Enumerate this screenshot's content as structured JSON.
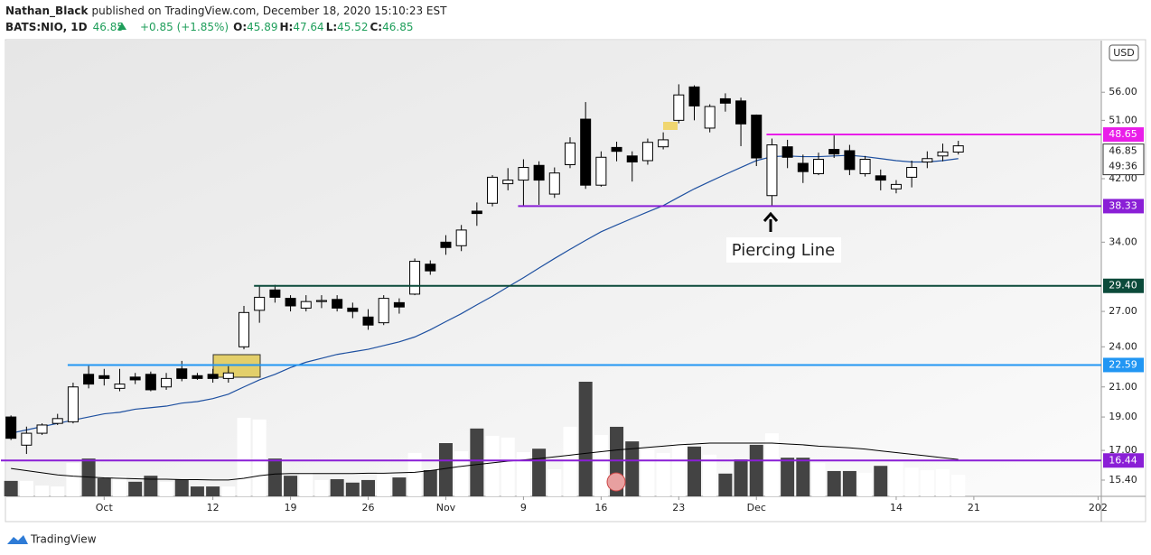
{
  "header": {
    "author": "Nathan_Black",
    "published": "published on TradingView.com, December 18, 2020 15:10:23 EST",
    "symbol": "BATS:NIO, 1D",
    "last": "46.85",
    "change": "+0.85 (+1.85%)",
    "ohlc": [
      {
        "label": "O:",
        "value": "45.89"
      },
      {
        "label": "H:",
        "value": "47.64"
      },
      {
        "label": "L:",
        "value": "45.52"
      },
      {
        "label": "C:",
        "value": "46.85"
      }
    ]
  },
  "footer": "TradingView",
  "chart_data": {
    "type": "candlestick",
    "log": true,
    "grid": false,
    "currency": "USD",
    "countdown": "49:36",
    "annotation": "Piercing Line",
    "xlim": [
      -0.3,
      70.15
    ],
    "ylim": [
      14.59,
      66.5
    ],
    "xticks": [
      {
        "value": 6,
        "label": "Oct"
      },
      {
        "value": 13,
        "label": "12"
      },
      {
        "value": 18,
        "label": "19"
      },
      {
        "value": 23,
        "label": "26"
      },
      {
        "value": 28,
        "label": "Nov"
      },
      {
        "value": 33,
        "label": "9"
      },
      {
        "value": 38,
        "label": "16"
      },
      {
        "value": 43,
        "label": "23"
      },
      {
        "value": 48,
        "label": "Dec"
      },
      {
        "value": 57,
        "label": "14"
      },
      {
        "value": 62,
        "label": "21"
      },
      {
        "value": 70,
        "label": "202"
      }
    ],
    "yticks": [
      {
        "value": 56,
        "label": "56.00"
      },
      {
        "value": 51,
        "label": "51.00"
      },
      {
        "value": 42,
        "label": "42.00"
      },
      {
        "value": 34,
        "label": "34.00"
      },
      {
        "value": 27,
        "label": "27.00"
      },
      {
        "value": 24,
        "label": "24.00"
      },
      {
        "value": 21,
        "label": "21.00"
      },
      {
        "value": 19,
        "label": "19.00"
      },
      {
        "value": 17,
        "label": "17.00"
      },
      {
        "value": 15.4,
        "label": "15.40"
      }
    ],
    "levels": [
      {
        "value": 48.65,
        "label": "48.65",
        "color": "#e91ee9",
        "from": 49
      },
      {
        "value": 38.33,
        "label": "38.33",
        "color": "#8a1fd6",
        "from": 33
      },
      {
        "value": 29.4,
        "label": "29.40",
        "color": "#0b4a3a",
        "from": 16
      },
      {
        "value": 22.59,
        "label": "22.59",
        "color": "#2196f3",
        "from": 4
      },
      {
        "value": 16.44,
        "label": "16.44",
        "color": "#8a1fd6",
        "from": -0.3
      }
    ],
    "up_color": "#ffffff",
    "down_color": "#000000",
    "volume_up_color": "#ffffff",
    "volume_down_color": "#434343",
    "ma_color": "#1e50a0",
    "volume_ma_color": "#000000",
    "open": [
      19.0,
      17.3,
      18.0,
      18.6,
      18.7,
      21.9,
      21.8,
      20.9,
      21.7,
      21.9,
      21.0,
      22.3,
      21.8,
      21.9,
      21.6,
      24.0,
      27.1,
      29.0,
      28.2,
      27.3,
      27.9,
      28.1,
      27.3,
      26.5,
      26.0,
      27.8,
      28.6,
      31.6,
      34.0,
      33.6,
      37.7,
      38.7,
      41.3,
      41.8,
      43.9,
      39.9,
      44.0,
      51.2,
      41.1,
      46.6,
      45.3,
      44.6,
      46.7,
      51.0,
      57.0,
      49.7,
      54.8,
      54.4,
      51.9,
      39.7,
      46.7,
      44.2,
      42.7,
      46.3,
      46.1,
      42.7,
      42.4,
      40.6,
      42.2,
      44.4,
      45.3,
      45.89
    ],
    "high": [
      19.1,
      18.4,
      18.6,
      19.2,
      21.3,
      22.6,
      22.3,
      22.3,
      22.0,
      22.1,
      22.0,
      22.9,
      22.0,
      22.3,
      22.5,
      27.5,
      29.4,
      29.5,
      28.5,
      28.5,
      28.5,
      28.5,
      27.8,
      27.2,
      28.5,
      28.2,
      32.2,
      32.0,
      34.8,
      36.0,
      38.8,
      42.5,
      43.5,
      44.8,
      44.5,
      43.6,
      48.2,
      54.2,
      46.0,
      47.5,
      46.0,
      48.0,
      49.0,
      57.5,
      57.3,
      53.8,
      55.8,
      55.0,
      52.0,
      48.0,
      47.8,
      45.5,
      45.8,
      48.5,
      47.0,
      45.3,
      43.3,
      41.8,
      44.6,
      46.0,
      47.2,
      47.64
    ],
    "low": [
      17.6,
      16.8,
      17.9,
      18.5,
      18.6,
      20.9,
      21.1,
      20.7,
      21.2,
      20.7,
      20.8,
      21.4,
      21.5,
      21.3,
      21.3,
      23.8,
      26.0,
      27.8,
      27.0,
      27.0,
      27.3,
      27.0,
      26.4,
      25.4,
      25.8,
      26.8,
      28.5,
      30.5,
      32.6,
      33.0,
      35.9,
      38.3,
      40.4,
      38.3,
      38.5,
      39.4,
      43.5,
      40.6,
      40.9,
      44.5,
      41.6,
      44.0,
      46.3,
      50.5,
      51.0,
      49.0,
      52.5,
      46.8,
      43.8,
      38.3,
      43.5,
      41.4,
      42.5,
      45.0,
      42.5,
      42.3,
      40.4,
      40.0,
      40.8,
      43.5,
      44.5,
      45.52
    ],
    "close": [
      17.7,
      18.0,
      18.5,
      18.9,
      21.0,
      21.2,
      21.6,
      21.2,
      21.5,
      20.8,
      21.6,
      21.6,
      21.6,
      21.6,
      22.0,
      26.9,
      28.3,
      28.3,
      27.5,
      27.9,
      28.0,
      27.3,
      27.0,
      25.8,
      28.2,
      27.4,
      31.9,
      30.9,
      33.4,
      35.4,
      37.4,
      42.2,
      41.8,
      43.6,
      41.8,
      42.8,
      47.3,
      41.1,
      45.1,
      46.0,
      44.4,
      47.4,
      47.8,
      55.5,
      53.5,
      53.4,
      54.0,
      50.4,
      45.0,
      47.0,
      45.1,
      43.0,
      44.8,
      45.6,
      43.3,
      44.8,
      41.8,
      41.2,
      43.6,
      44.9,
      45.9,
      46.85
    ],
    "volume": [
      36,
      36,
      25,
      23,
      78,
      88,
      42,
      46,
      34,
      48,
      34,
      40,
      23,
      23,
      23,
      183,
      179,
      88,
      48,
      55,
      38,
      40,
      32,
      38,
      57,
      44,
      101,
      61,
      124,
      105,
      158,
      141,
      137,
      103,
      111,
      63,
      162,
      267,
      143,
      162,
      128,
      109,
      101,
      126,
      116,
      97,
      53,
      86,
      120,
      147,
      90,
      90,
      78,
      59,
      59,
      55,
      71,
      80,
      67,
      61,
      63,
      50
    ],
    "ma": [
      18.0,
      18.2,
      18.4,
      18.6,
      18.8,
      19.0,
      19.2,
      19.3,
      19.5,
      19.6,
      19.7,
      19.9,
      20.0,
      20.2,
      20.5,
      21.0,
      21.5,
      21.9,
      22.4,
      22.8,
      23.1,
      23.4,
      23.6,
      23.8,
      24.1,
      24.4,
      24.8,
      25.4,
      26.1,
      26.8,
      27.6,
      28.4,
      29.3,
      30.2,
      31.2,
      32.2,
      33.2,
      34.2,
      35.2,
      36.0,
      36.8,
      37.6,
      38.4,
      39.5,
      40.6,
      41.6,
      42.6,
      43.6,
      44.6,
      45.2,
      45.3,
      45.2,
      45.2,
      45.3,
      45.4,
      45.2,
      44.9,
      44.6,
      44.4,
      44.4,
      44.6,
      44.9
    ],
    "volume_ma": [
      65,
      60,
      55,
      50,
      47,
      45,
      43,
      42,
      41,
      40,
      40,
      39,
      39,
      38,
      38,
      42,
      48,
      52,
      53,
      53,
      53,
      53,
      53,
      54,
      54,
      55,
      56,
      60,
      65,
      70,
      74,
      78,
      82,
      85,
      88,
      92,
      96,
      100,
      104,
      108,
      111,
      114,
      117,
      120,
      122,
      124,
      124,
      124,
      124,
      124,
      122,
      120,
      117,
      115,
      113,
      110,
      106,
      102,
      98,
      94,
      90,
      86
    ]
  }
}
